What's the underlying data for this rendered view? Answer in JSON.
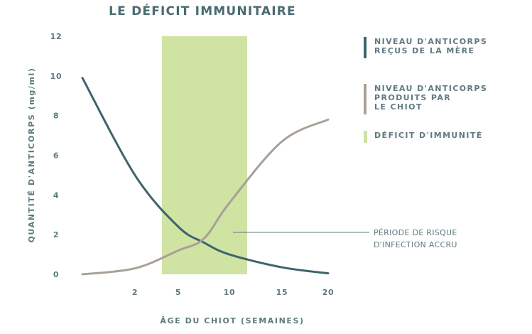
{
  "chart_data": {
    "type": "line",
    "title": "LE DÉFICIT IMMUNITAIRE",
    "xlabel": "ÂGE DU CHIOT (SEMAINES)",
    "ylabel": "QUANTITÉ D'ANTICORPS (mg/ml)",
    "ylim": [
      0,
      12
    ],
    "yticks": [
      "0",
      "2",
      "4",
      "6",
      "8",
      "10",
      "12"
    ],
    "xticks": [
      "2",
      "5",
      "10",
      "15",
      "20"
    ],
    "grid": false,
    "legend_position": "right",
    "series": [
      {
        "name": "NIVEAU D'ANTICORPS REÇUS DE LA MÈRE",
        "color": "#3f636b",
        "points": [
          [
            0,
            9.9
          ],
          [
            2,
            5.0
          ],
          [
            5,
            2.4
          ],
          [
            7.5,
            1.6
          ],
          [
            10,
            1.0
          ],
          [
            15,
            0.35
          ],
          [
            20,
            0.05
          ]
        ]
      },
      {
        "name": "NIVEAU D'ANTICORPS PRODUITS PAR LE CHIOT",
        "color": "#a9a097",
        "points": [
          [
            0,
            0.0
          ],
          [
            2,
            0.3
          ],
          [
            5,
            1.2
          ],
          [
            7.5,
            1.8
          ],
          [
            10,
            3.6
          ],
          [
            15,
            6.7
          ],
          [
            20,
            7.8
          ]
        ]
      }
    ],
    "highlight_band": {
      "name": "DÉFICIT D'IMMUNITÉ",
      "color": "#cfe3a3",
      "x_start_label": "2",
      "x_end_label": "10"
    },
    "annotation": {
      "lines": [
        "PÉRIODE DE RISQUE",
        "D'INFECTION ACCRU"
      ]
    }
  },
  "legend": {
    "items": [
      {
        "lines": [
          "NIVEAU D'ANTICORPS",
          "REÇUS DE LA MÈRE"
        ],
        "color": "#3f636b"
      },
      {
        "lines": [
          "NIVEAU D'ANTICORPS",
          "PRODUITS PAR",
          "LE CHIOT"
        ],
        "color": "#a9a097"
      },
      {
        "lines": [
          "DÉFICIT D'IMMUNITÉ"
        ],
        "color": "#cfe3a3"
      }
    ]
  }
}
